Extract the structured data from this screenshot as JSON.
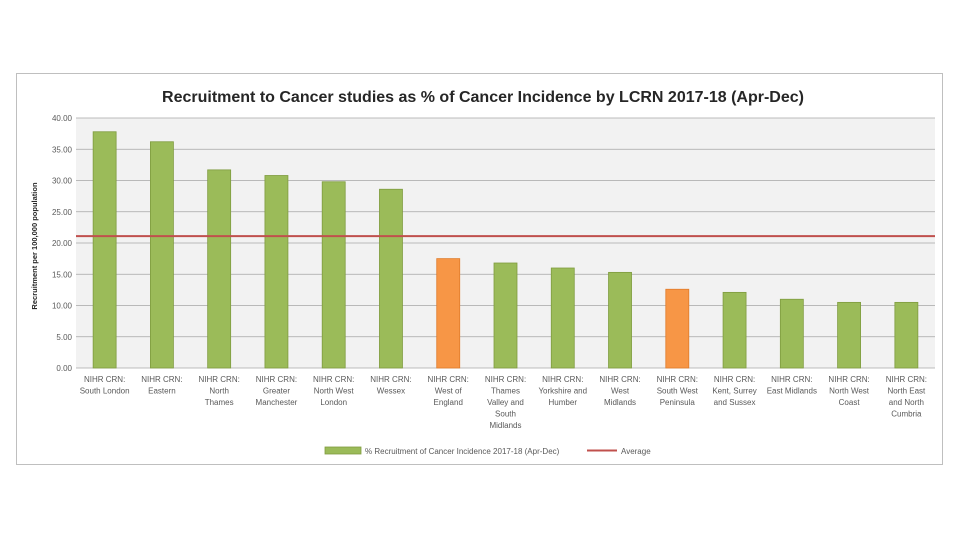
{
  "chart_data": {
    "type": "bar",
    "title": "Recruitment to Cancer studies as % of Cancer Incidence by LCRN 2017-18 (Apr-Dec)",
    "xlabel": "",
    "ylabel": "Recruitment per 100,000 population",
    "ylim": [
      0,
      40
    ],
    "yticks": [
      "0.00",
      "5.00",
      "10.00",
      "15.00",
      "20.00",
      "25.00",
      "30.00",
      "35.00",
      "40.00"
    ],
    "grid": true,
    "legend_position": "bottom",
    "categories": [
      [
        "NIHR CRN:",
        "South London"
      ],
      [
        "NIHR CRN:",
        "Eastern"
      ],
      [
        "NIHR CRN:",
        "North",
        "Thames"
      ],
      [
        "NIHR CRN:",
        "Greater",
        "Manchester"
      ],
      [
        "NIHR CRN:",
        "North West",
        "London"
      ],
      [
        "NIHR CRN:",
        "Wessex"
      ],
      [
        "NIHR CRN:",
        "West of",
        "England"
      ],
      [
        "NIHR CRN:",
        "Thames",
        "Valley and",
        "South",
        "Midlands"
      ],
      [
        "NIHR CRN:",
        "Yorkshire and",
        "Humber"
      ],
      [
        "NIHR CRN:",
        "West",
        "Midlands"
      ],
      [
        "NIHR CRN:",
        "South West",
        "Peninsula"
      ],
      [
        "NIHR CRN:",
        "Kent, Surrey",
        "and Sussex"
      ],
      [
        "NIHR CRN:",
        "East Midlands"
      ],
      [
        "NIHR CRN:",
        "North West",
        "Coast"
      ],
      [
        "NIHR CRN:",
        "North East",
        "and North",
        "Cumbria"
      ]
    ],
    "series": [
      {
        "name": "% Recruitment of Cancer Incidence 2017-18 (Apr-Dec)",
        "values": [
          37.8,
          36.2,
          31.7,
          30.8,
          29.8,
          28.6,
          17.5,
          16.8,
          16.0,
          15.3,
          12.6,
          12.1,
          11.0,
          10.5,
          10.5
        ],
        "color": "#9bbb59",
        "highlight_color": "#f79646",
        "highlight_indices": [
          6,
          10
        ]
      },
      {
        "name": "Average",
        "type": "line",
        "value": 21.1,
        "color": "#c0504d"
      }
    ]
  }
}
